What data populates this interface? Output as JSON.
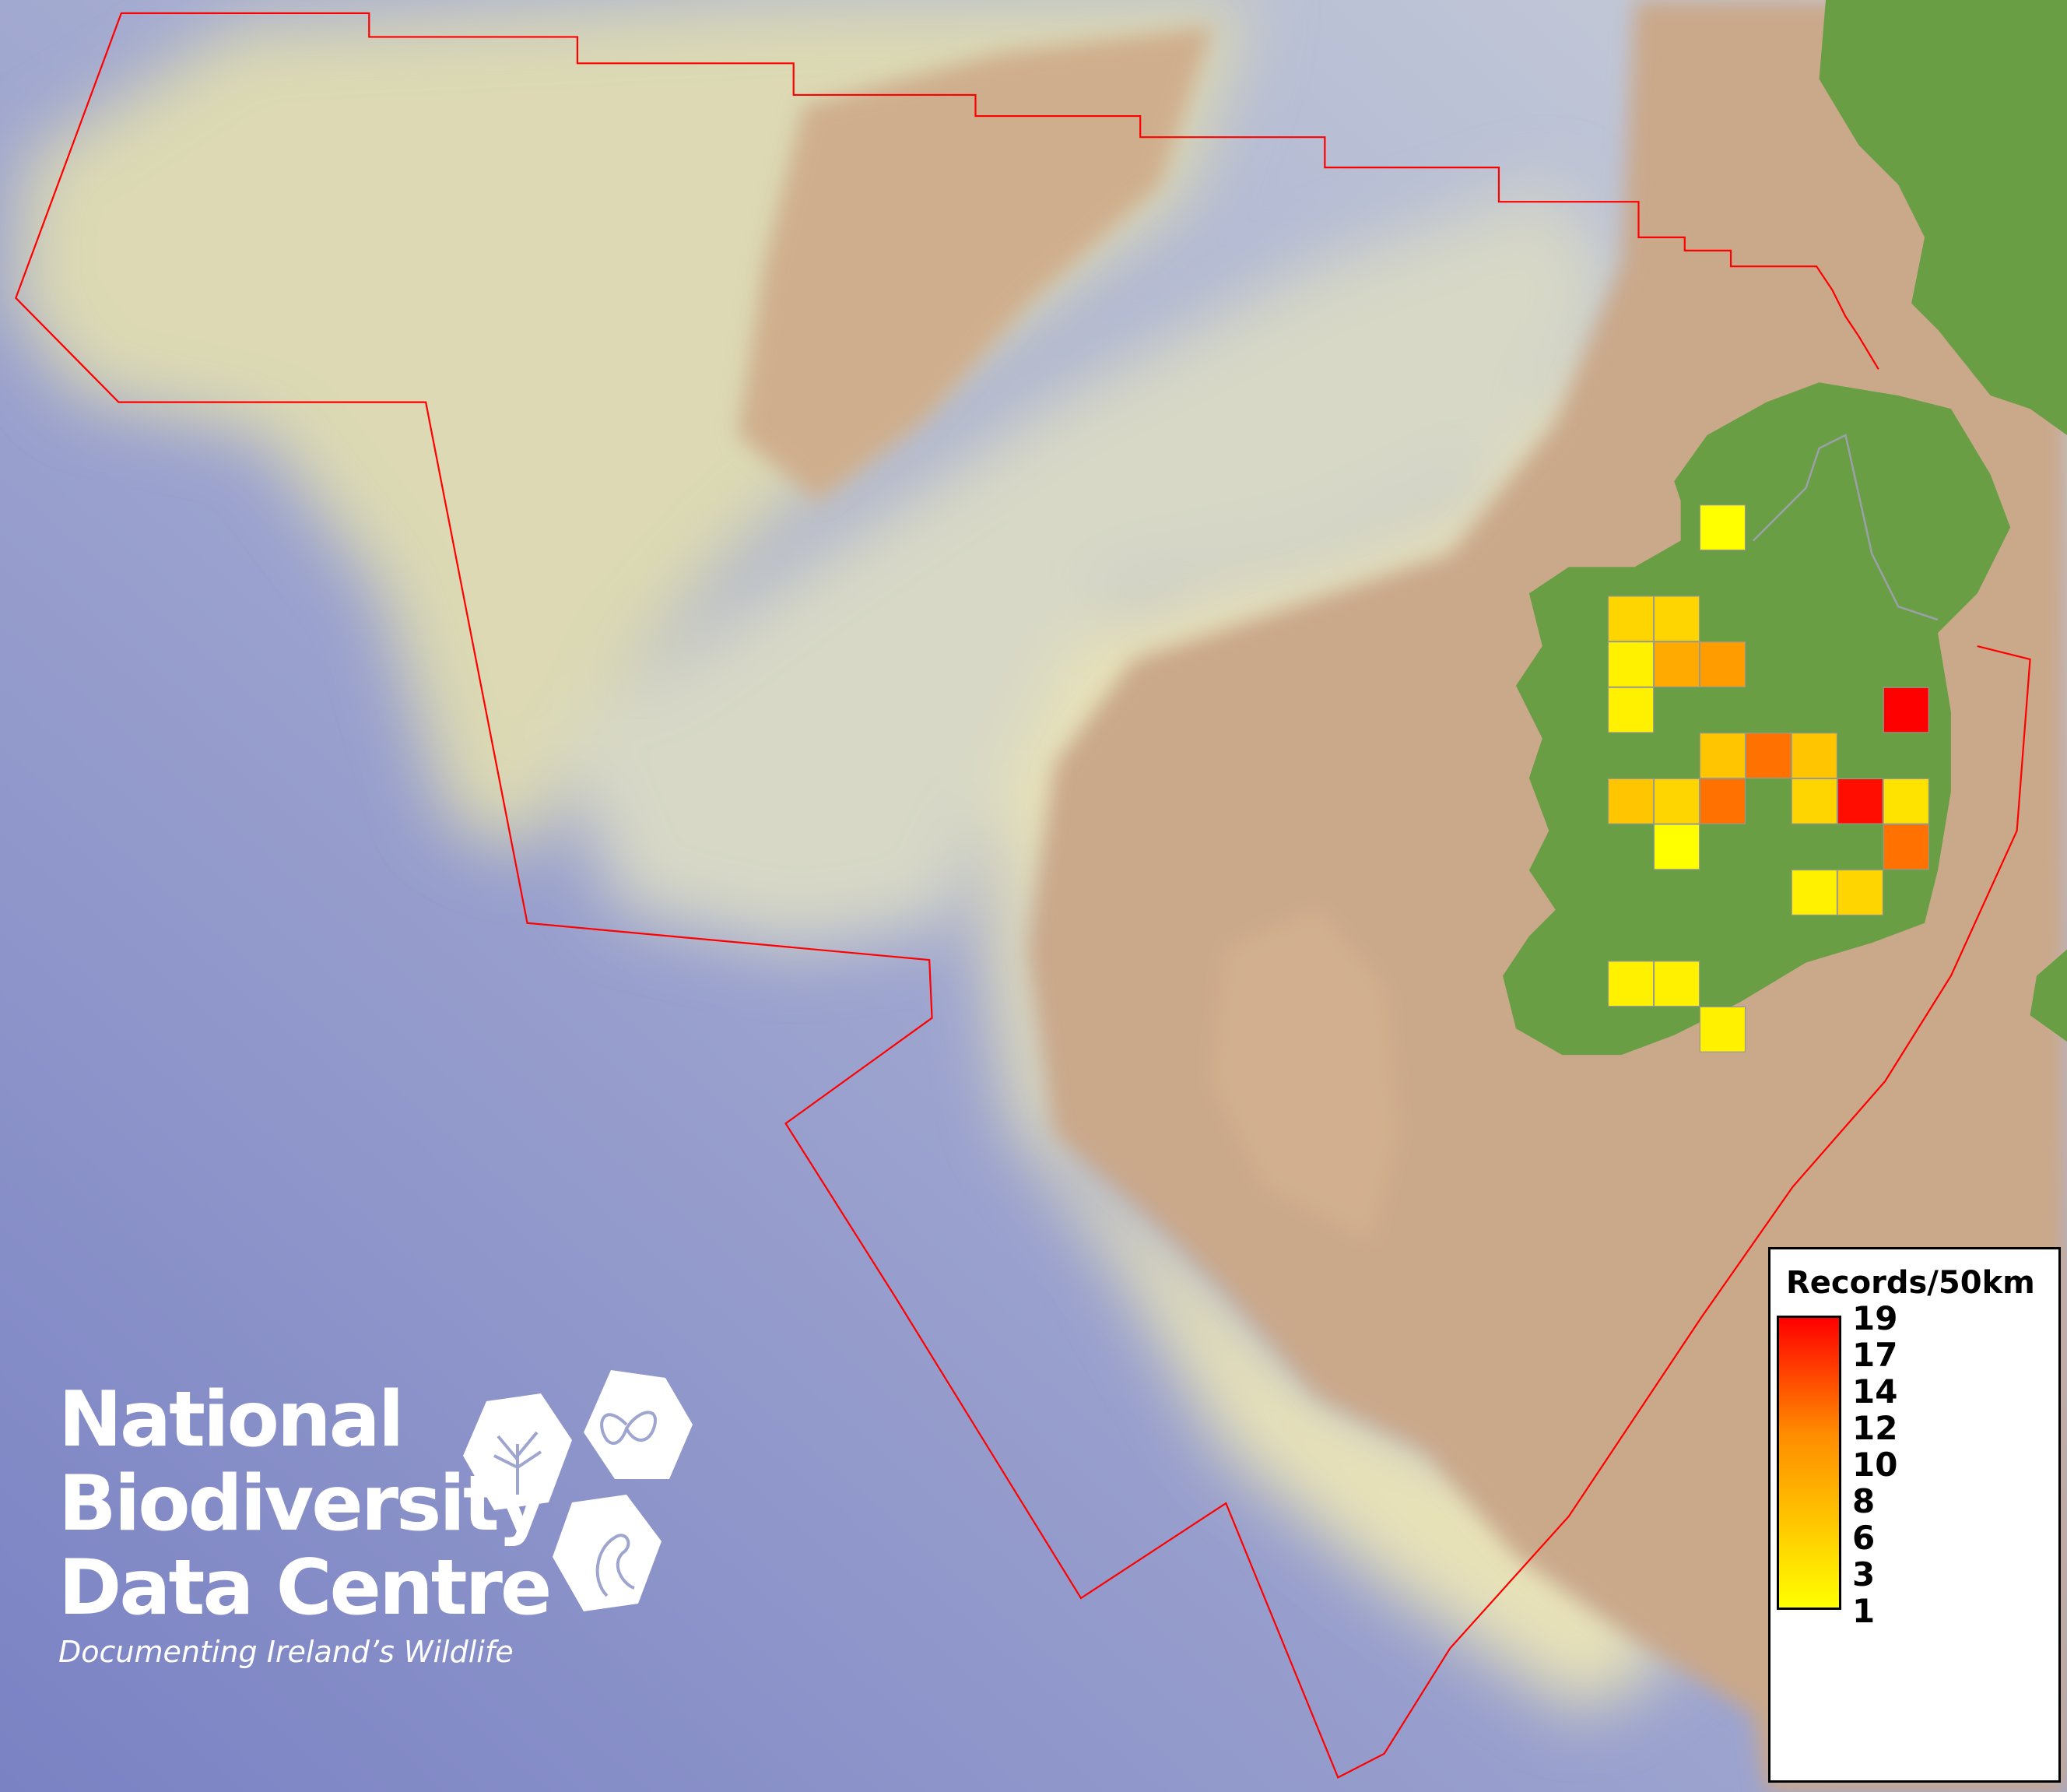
{
  "legend": {
    "title": "Records/50km",
    "ticks": [
      "19",
      "17",
      "14",
      "12",
      "10",
      "8",
      "6",
      "3",
      "1"
    ],
    "color_low": "#ffff00",
    "color_mid": "#ff8c00",
    "color_high": "#ff0000"
  },
  "colors": {
    "boundary": "#ff0000",
    "land": "#6a9e45",
    "deep_sea": "#7e86c6",
    "shelf": "#ddd9b2",
    "slope_tan": "#caa88a"
  },
  "grid_cells": [
    {
      "col": 2,
      "row": 0,
      "value": 1
    },
    {
      "col": 0,
      "row": 2,
      "value": 4
    },
    {
      "col": 1,
      "row": 2,
      "value": 4
    },
    {
      "col": 0,
      "row": 3,
      "value": 2
    },
    {
      "col": 1,
      "row": 3,
      "value": 7
    },
    {
      "col": 2,
      "row": 3,
      "value": 8
    },
    {
      "col": 0,
      "row": 4,
      "value": 2
    },
    {
      "col": 6,
      "row": 4,
      "value": 19
    },
    {
      "col": 2,
      "row": 5,
      "value": 5
    },
    {
      "col": 3,
      "row": 5,
      "value": 11
    },
    {
      "col": 4,
      "row": 5,
      "value": 5
    },
    {
      "col": 0,
      "row": 6,
      "value": 5
    },
    {
      "col": 1,
      "row": 6,
      "value": 4
    },
    {
      "col": 2,
      "row": 6,
      "value": 11
    },
    {
      "col": 4,
      "row": 6,
      "value": 4
    },
    {
      "col": 5,
      "row": 6,
      "value": 18
    },
    {
      "col": 6,
      "row": 6,
      "value": 3
    },
    {
      "col": 1,
      "row": 7,
      "value": 1
    },
    {
      "col": 6,
      "row": 7,
      "value": 11
    },
    {
      "col": 4,
      "row": 8,
      "value": 2
    },
    {
      "col": 5,
      "row": 8,
      "value": 4
    },
    {
      "col": 0,
      "row": 10,
      "value": 2
    },
    {
      "col": 1,
      "row": 10,
      "value": 2
    },
    {
      "col": 2,
      "row": 11,
      "value": 2
    }
  ],
  "logo": {
    "line1": "National",
    "line2": "Biodiversity",
    "line3": "Data Centre",
    "tagline": "Documenting Ireland’s Wildlife"
  }
}
